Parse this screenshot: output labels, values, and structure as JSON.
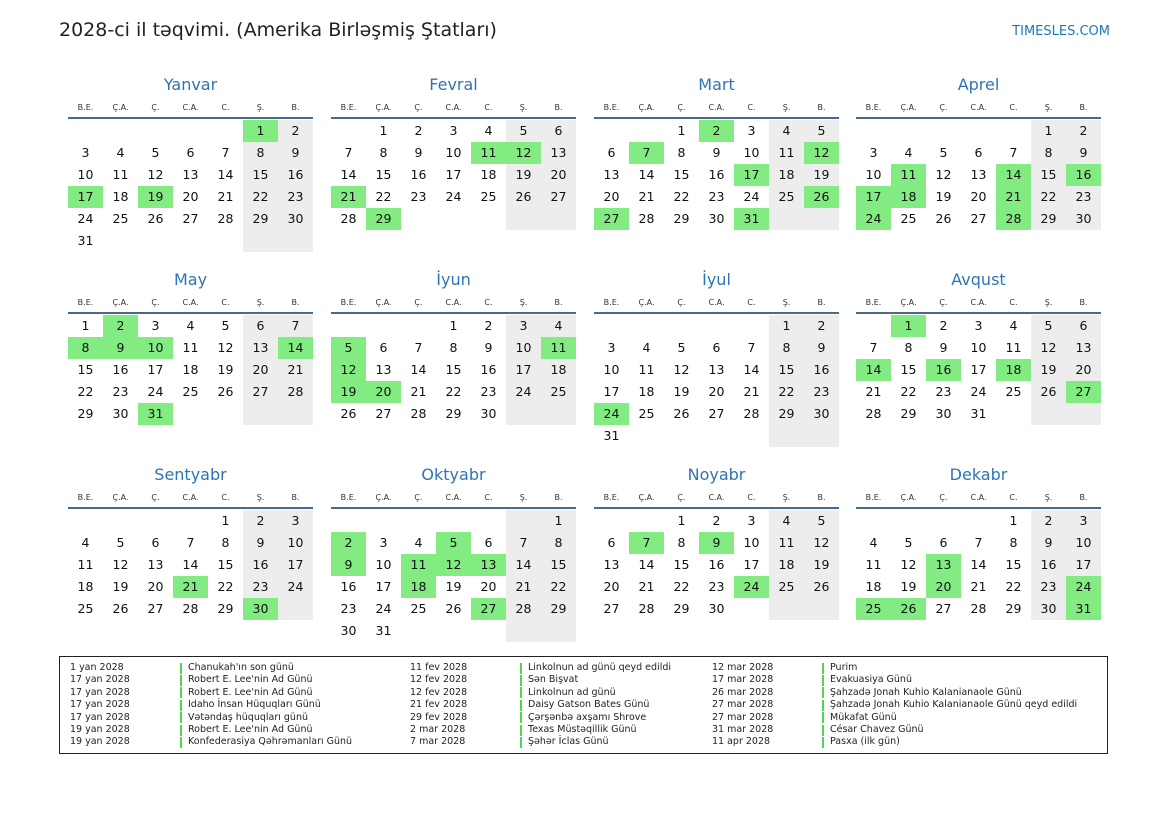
{
  "header": {
    "title": "2028-ci il təqvimi. (Amerika Birləşmiş Ştatları)",
    "site": "TIMESLES.COM"
  },
  "weekdays": [
    "B.E.",
    "Ç.A.",
    "Ç.",
    "C.A.",
    "C.",
    "Ş.",
    "B."
  ],
  "months": [
    {
      "name": "Yanvar",
      "offset": 5,
      "days": 31,
      "holidays": [
        1,
        17,
        19
      ]
    },
    {
      "name": "Fevral",
      "offset": 1,
      "days": 29,
      "holidays": [
        11,
        12,
        21,
        29
      ]
    },
    {
      "name": "Mart",
      "offset": 2,
      "days": 31,
      "holidays": [
        2,
        7,
        12,
        17,
        26,
        27,
        31
      ]
    },
    {
      "name": "Aprel",
      "offset": 5,
      "days": 30,
      "holidays": [
        11,
        14,
        16,
        17,
        18,
        21,
        24,
        28
      ]
    },
    {
      "name": "May",
      "offset": 0,
      "days": 31,
      "holidays": [
        2,
        8,
        9,
        10,
        14,
        31
      ]
    },
    {
      "name": "İyun",
      "offset": 3,
      "days": 30,
      "holidays": [
        5,
        11,
        12,
        19,
        20
      ]
    },
    {
      "name": "İyul",
      "offset": 5,
      "days": 31,
      "holidays": [
        24
      ]
    },
    {
      "name": "Avqust",
      "offset": 1,
      "days": 31,
      "holidays": [
        1,
        14,
        16,
        18,
        27
      ]
    },
    {
      "name": "Sentyabr",
      "offset": 4,
      "days": 30,
      "holidays": [
        21,
        30
      ]
    },
    {
      "name": "Oktyabr",
      "offset": 6,
      "days": 31,
      "holidays": [
        2,
        5,
        9,
        11,
        12,
        13,
        18,
        27
      ]
    },
    {
      "name": "Noyabr",
      "offset": 2,
      "days": 30,
      "holidays": [
        7,
        9,
        24
      ]
    },
    {
      "name": "Dekabr",
      "offset": 4,
      "days": 31,
      "holidays": [
        13,
        20,
        24,
        25,
        26,
        31
      ]
    }
  ],
  "holiday_list": [
    [
      {
        "date": "1 yan 2028",
        "name": "Chanukah'ın son günü"
      },
      {
        "date": "17 yan 2028",
        "name": "Robert E. Lee'nin Ad Günü"
      },
      {
        "date": "17 yan 2028",
        "name": "Robert E. Lee'nin Ad Günü"
      },
      {
        "date": "17 yan 2028",
        "name": "Idaho İnsan Hüquqları Günü"
      },
      {
        "date": "17 yan 2028",
        "name": "Vətəndaş hüquqları günü"
      },
      {
        "date": "19 yan 2028",
        "name": "Robert E. Lee'nin Ad Günü"
      },
      {
        "date": "19 yan 2028",
        "name": "Konfederasiya Qəhrəmanları Günü"
      }
    ],
    [
      {
        "date": "11 fev 2028",
        "name": "Linkolnun ad günü qeyd edildi"
      },
      {
        "date": "12 fev 2028",
        "name": "Sən Bişvat"
      },
      {
        "date": "12 fev 2028",
        "name": "Linkolnun ad günü"
      },
      {
        "date": "21 fev 2028",
        "name": "Daisy Gatson Bates Günü"
      },
      {
        "date": "29 fev 2028",
        "name": "Çərşənbə axşamı Shrove"
      },
      {
        "date": "2 mar 2028",
        "name": "Texas Müstəqillik Günü"
      },
      {
        "date": "7 mar 2028",
        "name": "Şəhər İclas Günü"
      }
    ],
    [
      {
        "date": "12 mar 2028",
        "name": "Purim"
      },
      {
        "date": "17 mar 2028",
        "name": "Evakuasiya Günü"
      },
      {
        "date": "26 mar 2028",
        "name": "Şahzadə Jonah Kuhio Kalanianaole Günü"
      },
      {
        "date": "27 mar 2028",
        "name": "Şahzadə Jonah Kuhio Kalanianaole Günü qeyd edildi"
      },
      {
        "date": "27 mar 2028",
        "name": "Mükafat Günü"
      },
      {
        "date": "31 mar 2028",
        "name": "César Chavez Günü"
      },
      {
        "date": "11 apr 2028",
        "name": "Pasxa (ilk gün)"
      }
    ]
  ],
  "colors": {
    "accent": "#2e74b5",
    "holiday": "#82eb82",
    "weekend": "#ededed"
  }
}
